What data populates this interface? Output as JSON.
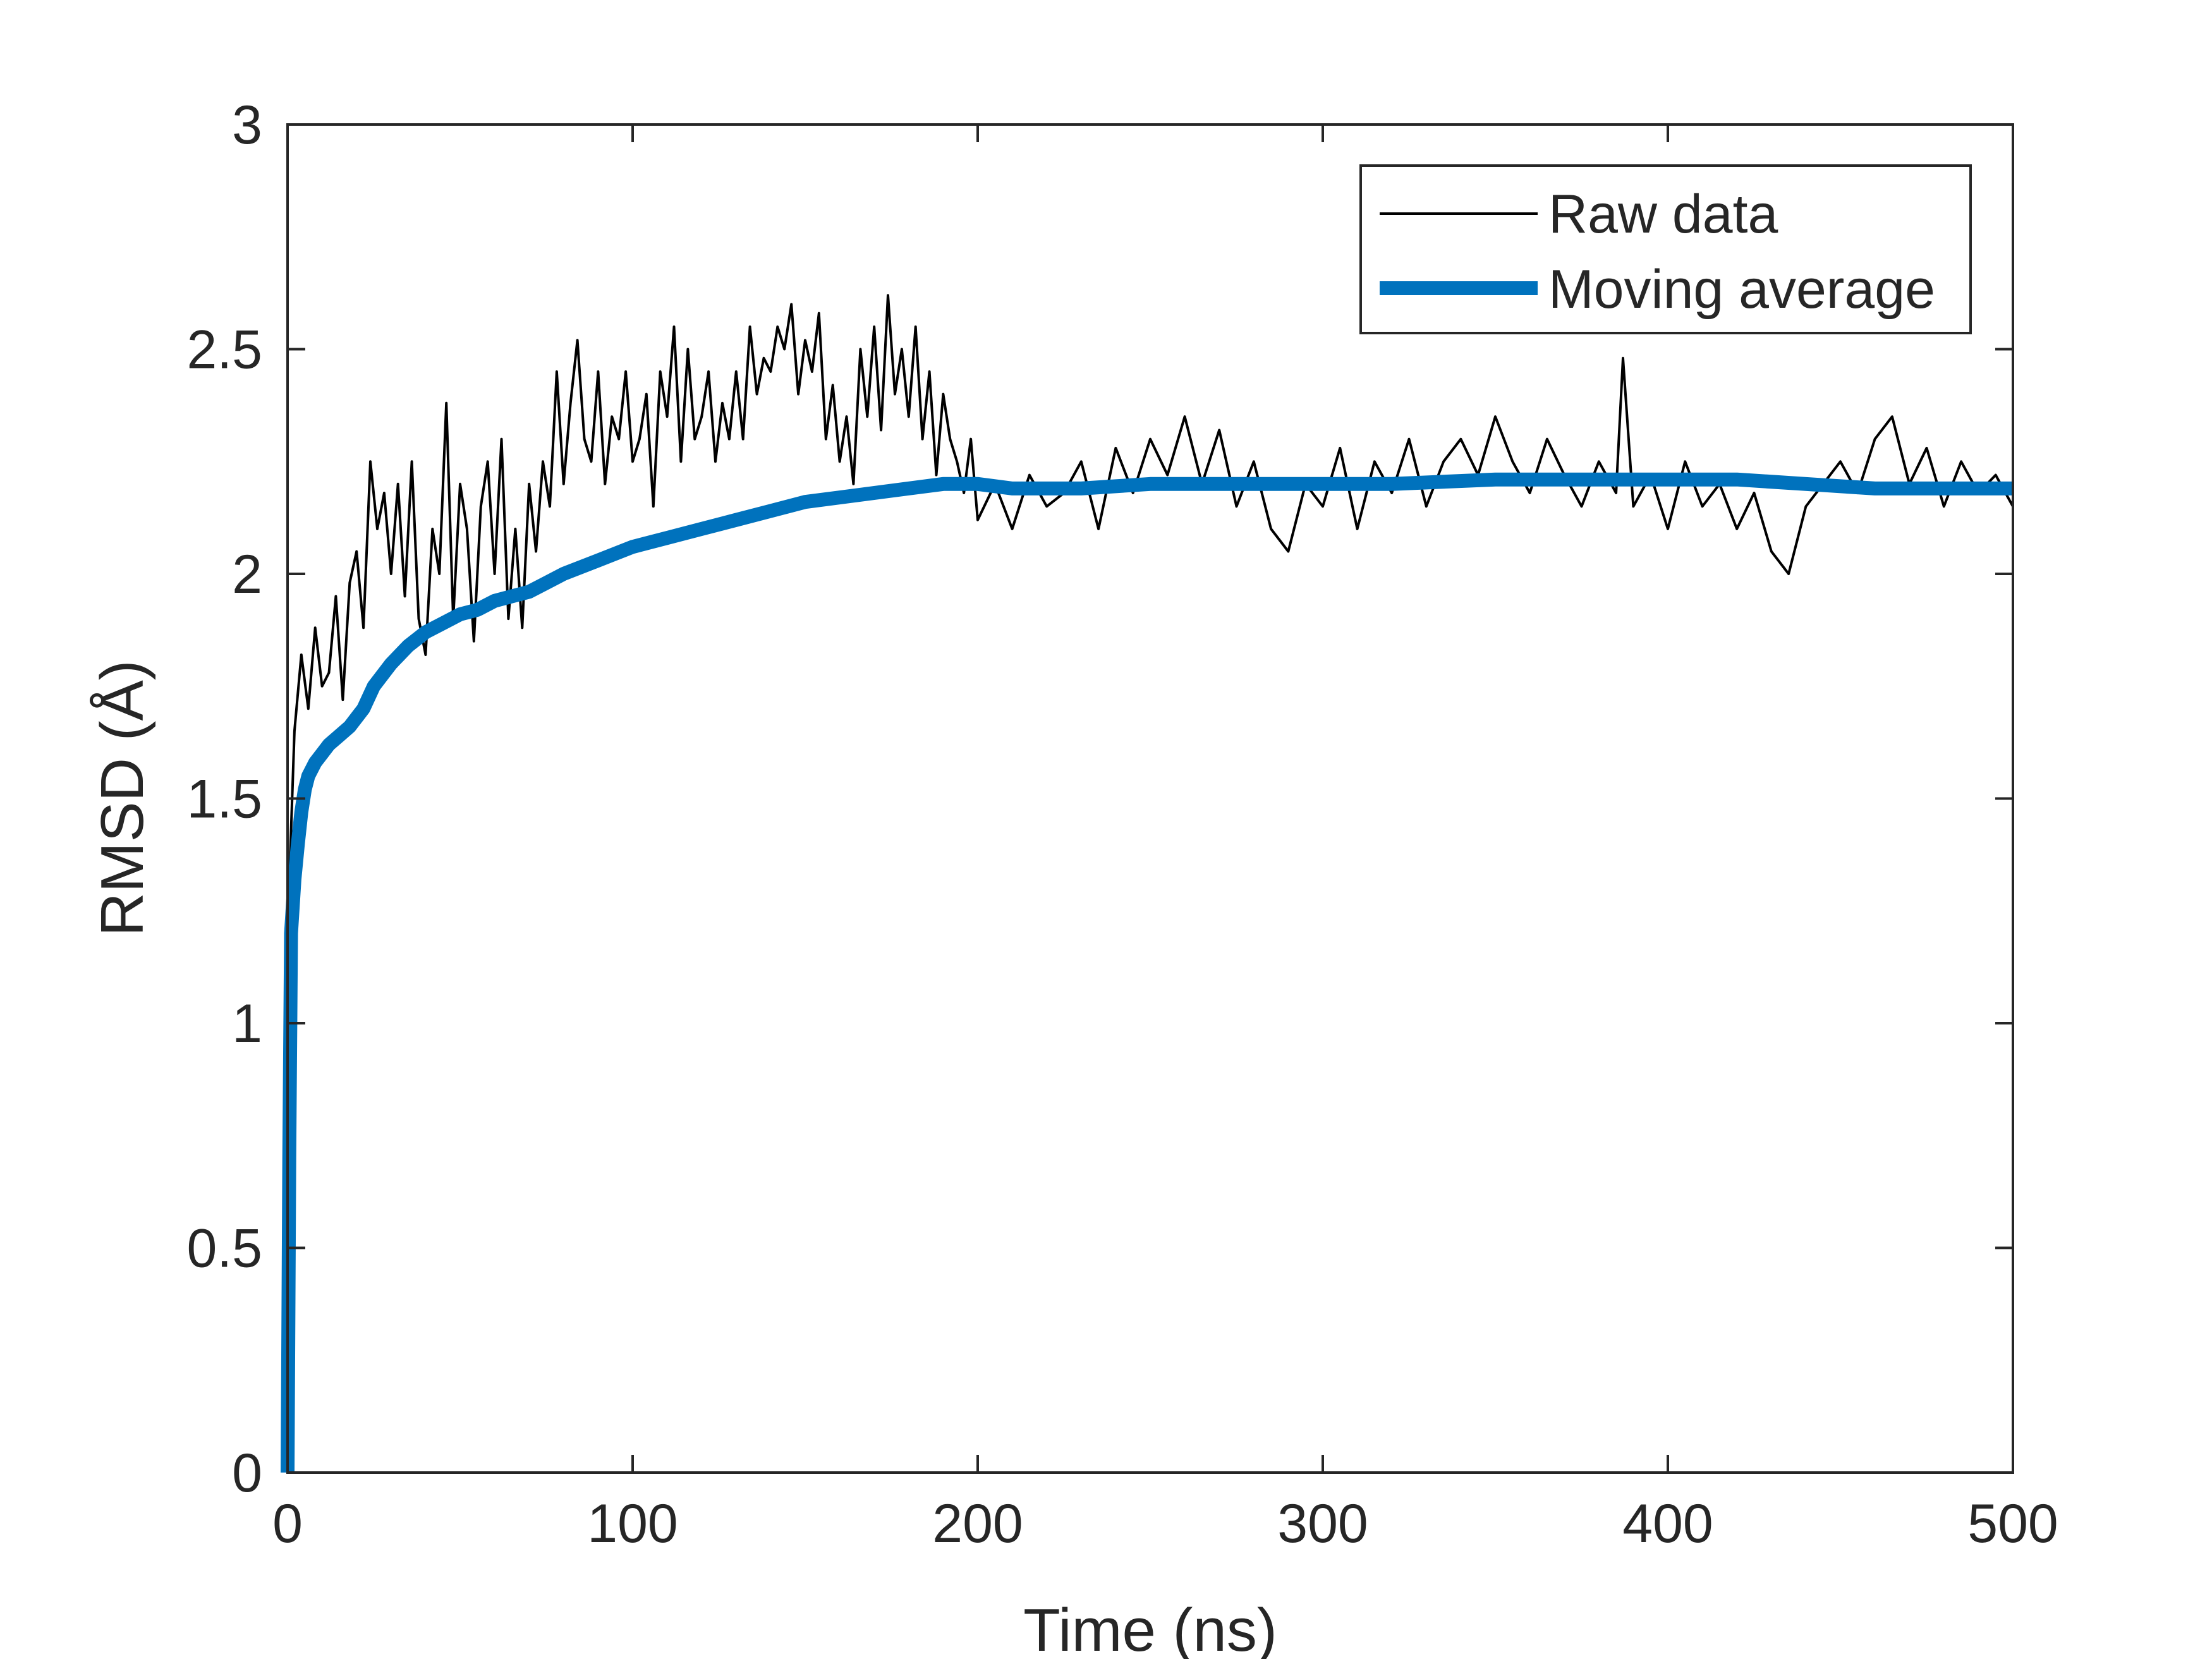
{
  "chart_data": {
    "type": "line",
    "title": "",
    "xlabel": "Time (ns)",
    "ylabel": "RMSD (Å)",
    "xlim": [
      0,
      500
    ],
    "ylim": [
      0,
      3
    ],
    "xticks": [
      0,
      100,
      200,
      300,
      400,
      500
    ],
    "xtick_labels": [
      "0",
      "100",
      "200",
      "300",
      "400",
      "500"
    ],
    "yticks": [
      0,
      0.5,
      1,
      1.5,
      2,
      2.5,
      3
    ],
    "ytick_labels": [
      "0",
      "0.5",
      "1",
      "1.5",
      "2",
      "2.5",
      "3"
    ],
    "grid": false,
    "legend_position": "top-right",
    "series": [
      {
        "name": "Raw data",
        "color": "#000000",
        "style": "thin",
        "x": [
          0,
          2,
          4,
          6,
          8,
          10,
          12,
          14,
          16,
          18,
          20,
          22,
          24,
          26,
          28,
          30,
          32,
          34,
          36,
          38,
          40,
          42,
          44,
          46,
          48,
          50,
          52,
          54,
          56,
          58,
          60,
          62,
          64,
          66,
          68,
          70,
          72,
          74,
          76,
          78,
          80,
          82,
          84,
          86,
          88,
          90,
          92,
          94,
          96,
          98,
          100,
          102,
          104,
          106,
          108,
          110,
          112,
          114,
          116,
          118,
          120,
          122,
          124,
          126,
          128,
          130,
          132,
          134,
          136,
          138,
          140,
          142,
          144,
          146,
          148,
          150,
          152,
          154,
          156,
          158,
          160,
          162,
          164,
          166,
          168,
          170,
          172,
          174,
          176,
          178,
          180,
          182,
          184,
          186,
          188,
          190,
          192,
          194,
          196,
          198,
          200,
          205,
          210,
          215,
          220,
          225,
          230,
          235,
          240,
          245,
          250,
          255,
          260,
          265,
          270,
          275,
          280,
          285,
          290,
          295,
          300,
          305,
          310,
          315,
          320,
          325,
          330,
          335,
          340,
          345,
          350,
          355,
          360,
          365,
          370,
          375,
          380,
          385,
          387,
          390,
          395,
          400,
          405,
          410,
          415,
          420,
          425,
          430,
          435,
          440,
          445,
          450,
          455,
          460,
          465,
          470,
          475,
          480,
          485,
          490,
          495,
          500
        ],
        "y": [
          1.2,
          1.65,
          1.82,
          1.7,
          1.88,
          1.75,
          1.78,
          1.95,
          1.72,
          1.98,
          2.05,
          1.88,
          2.25,
          2.1,
          2.18,
          2.0,
          2.2,
          1.95,
          2.25,
          1.9,
          1.82,
          2.1,
          2.0,
          2.38,
          1.9,
          2.2,
          2.1,
          1.85,
          2.15,
          2.25,
          2.0,
          2.3,
          1.9,
          2.1,
          1.88,
          2.2,
          2.05,
          2.25,
          2.15,
          2.45,
          2.2,
          2.38,
          2.52,
          2.3,
          2.25,
          2.45,
          2.2,
          2.35,
          2.3,
          2.45,
          2.25,
          2.3,
          2.4,
          2.15,
          2.45,
          2.35,
          2.55,
          2.25,
          2.5,
          2.3,
          2.35,
          2.45,
          2.25,
          2.38,
          2.3,
          2.45,
          2.3,
          2.55,
          2.4,
          2.48,
          2.45,
          2.55,
          2.5,
          2.6,
          2.4,
          2.52,
          2.45,
          2.58,
          2.3,
          2.42,
          2.25,
          2.35,
          2.2,
          2.5,
          2.35,
          2.55,
          2.32,
          2.62,
          2.4,
          2.5,
          2.35,
          2.55,
          2.3,
          2.45,
          2.22,
          2.4,
          2.3,
          2.25,
          2.18,
          2.3,
          2.12,
          2.2,
          2.1,
          2.22,
          2.15,
          2.18,
          2.25,
          2.1,
          2.28,
          2.18,
          2.3,
          2.22,
          2.35,
          2.2,
          2.32,
          2.15,
          2.25,
          2.1,
          2.05,
          2.2,
          2.15,
          2.28,
          2.1,
          2.25,
          2.18,
          2.3,
          2.15,
          2.25,
          2.3,
          2.22,
          2.35,
          2.25,
          2.18,
          2.3,
          2.22,
          2.15,
          2.25,
          2.18,
          2.48,
          2.15,
          2.22,
          2.1,
          2.25,
          2.15,
          2.2,
          2.1,
          2.18,
          2.05,
          2.0,
          2.15,
          2.2,
          2.25,
          2.18,
          2.3,
          2.35,
          2.2,
          2.28,
          2.15,
          2.25,
          2.18,
          2.22,
          2.15
        ]
      },
      {
        "name": "Moving average",
        "color": "#0072BD",
        "style": "thick",
        "x": [
          0,
          0.5,
          1,
          2,
          3,
          4,
          5,
          6,
          8,
          10,
          12,
          15,
          18,
          20,
          22,
          25,
          30,
          35,
          40,
          45,
          50,
          55,
          60,
          65,
          70,
          75,
          80,
          90,
          100,
          110,
          120,
          130,
          140,
          150,
          160,
          170,
          180,
          190,
          200,
          210,
          220,
          230,
          250,
          270,
          300,
          320,
          350,
          380,
          400,
          420,
          440,
          460,
          480,
          500
        ],
        "y": [
          0,
          0.7,
          1.2,
          1.32,
          1.4,
          1.47,
          1.52,
          1.55,
          1.58,
          1.6,
          1.62,
          1.64,
          1.66,
          1.68,
          1.7,
          1.75,
          1.8,
          1.84,
          1.87,
          1.89,
          1.91,
          1.92,
          1.94,
          1.95,
          1.96,
          1.98,
          2.0,
          2.03,
          2.06,
          2.08,
          2.1,
          2.12,
          2.14,
          2.16,
          2.17,
          2.18,
          2.19,
          2.2,
          2.2,
          2.19,
          2.19,
          2.19,
          2.2,
          2.2,
          2.2,
          2.2,
          2.21,
          2.21,
          2.21,
          2.21,
          2.2,
          2.19,
          2.19,
          2.19
        ]
      }
    ]
  }
}
